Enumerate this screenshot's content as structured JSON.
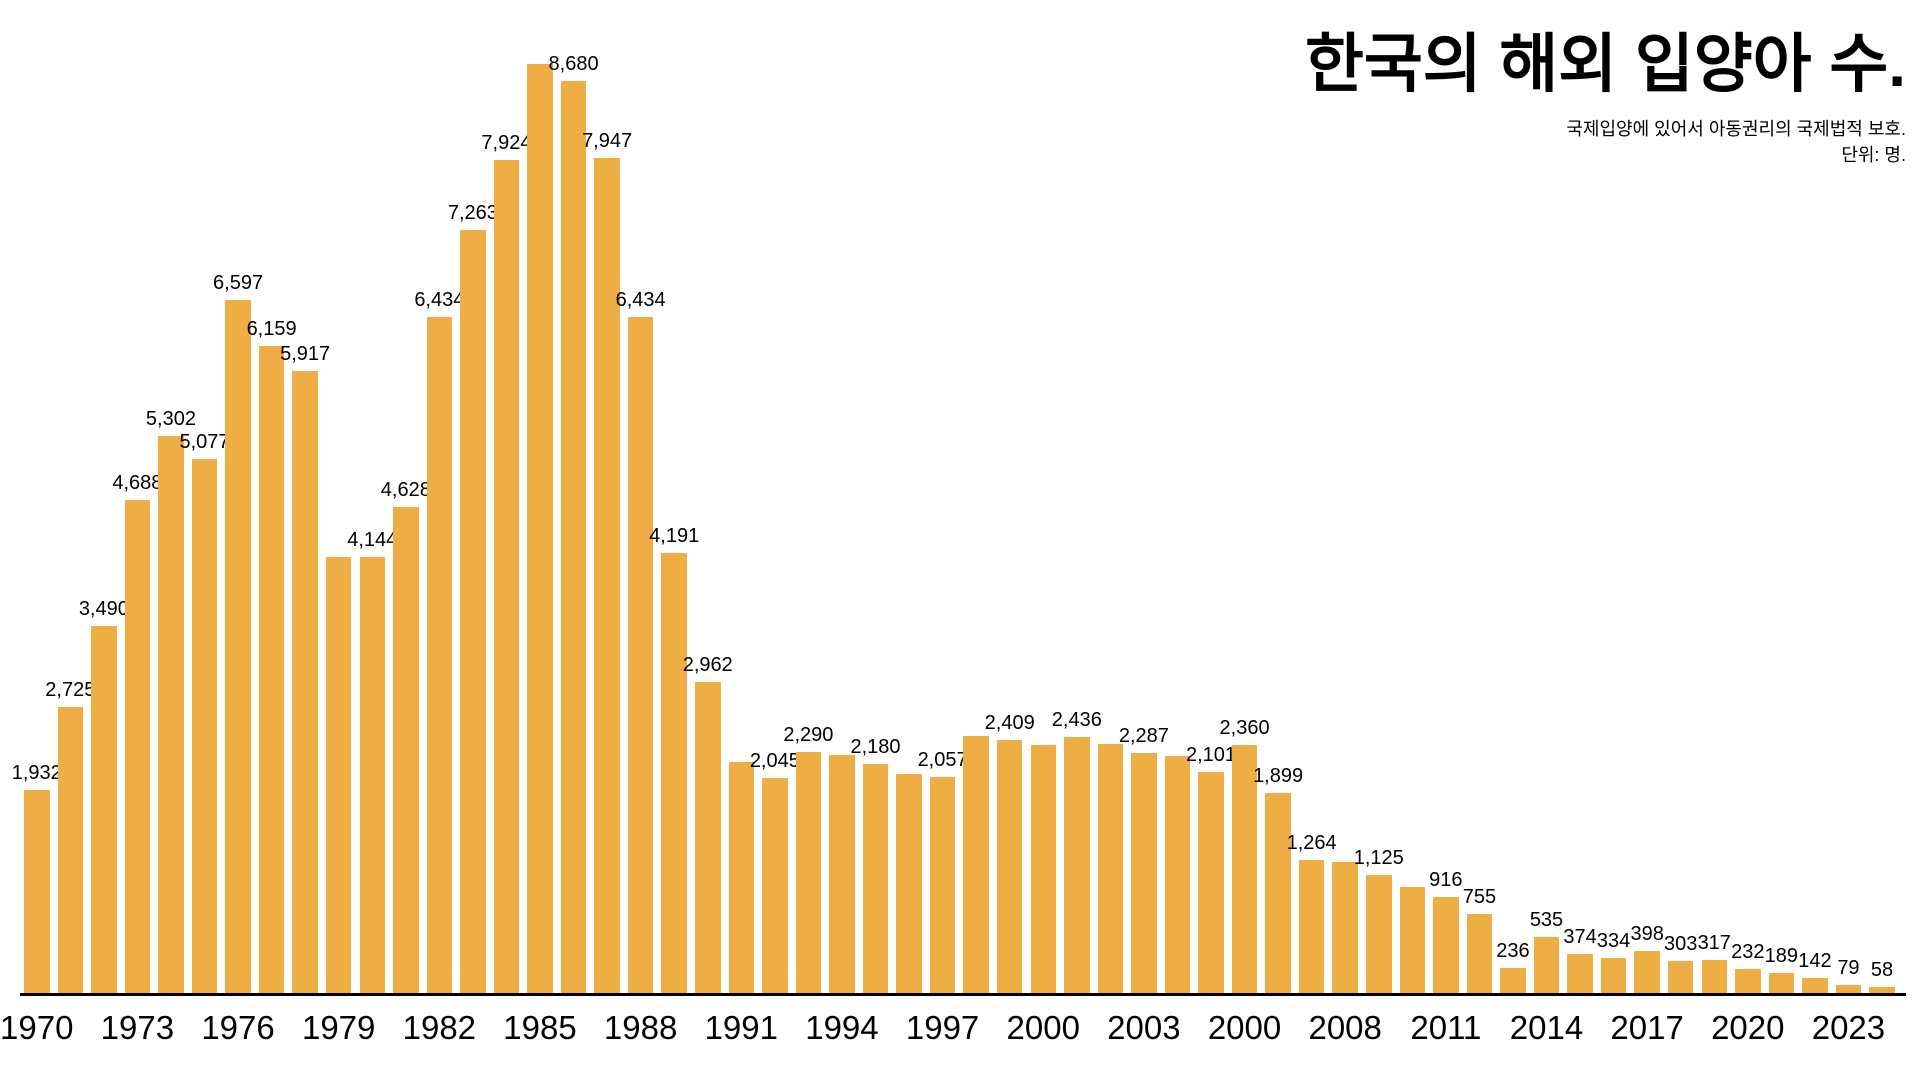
{
  "title": "한국의 해외 입양아 수.",
  "subtitle_line1": "국제입양에 있어서 아동권리의 국제법적 보호.",
  "subtitle_line2": "단위: 명.",
  "chart_data": {
    "type": "bar",
    "title": "한국의 해외 입양아 수.",
    "subtitle": "국제입양에 있어서 아동권리의 국제법적 보호. 단위: 명.",
    "xlabel": "",
    "ylabel": "명",
    "ylim": [
      0,
      8837
    ],
    "grid": false,
    "legend": "none",
    "bar_color": "#EFAD45",
    "axis_line_color": "#000000",
    "text_color": "#000000",
    "background_color": "#ffffff",
    "x_tick_labels": [
      "1970",
      "1973",
      "1976",
      "1979",
      "1982",
      "1985",
      "1988",
      "1991",
      "1994",
      "1997",
      "2000",
      "2003",
      "2000",
      "2008",
      "2011",
      "2014",
      "2017",
      "2020",
      "2023"
    ],
    "bars": [
      {
        "tick": "1970",
        "value": 1932,
        "label": "1,932"
      },
      {
        "tick": "",
        "value": 2725,
        "label": "2,725"
      },
      {
        "tick": "",
        "value": 3490,
        "label": "3,490"
      },
      {
        "tick": "1973",
        "value": 4688,
        "label": "4,688"
      },
      {
        "tick": "",
        "value": 5302,
        "label": "5,302"
      },
      {
        "tick": "",
        "value": 5077,
        "label": "5,077"
      },
      {
        "tick": "1976",
        "value": 6597,
        "label": "6,597"
      },
      {
        "tick": "",
        "value": 6159,
        "label": "6,159"
      },
      {
        "tick": "",
        "value": 5917,
        "label": "5,917"
      },
      {
        "tick": "1979",
        "value": 4148,
        "label": ""
      },
      {
        "tick": "",
        "value": 4144,
        "label": "4,144"
      },
      {
        "tick": "",
        "value": 4628,
        "label": "4,628"
      },
      {
        "tick": "1982",
        "value": 6434,
        "label": "6,434"
      },
      {
        "tick": "",
        "value": 7263,
        "label": "7,263"
      },
      {
        "tick": "",
        "value": 7924,
        "label": "7,924"
      },
      {
        "tick": "1985",
        "value": 8837,
        "label": ""
      },
      {
        "tick": "",
        "value": 8680,
        "label": "8,680"
      },
      {
        "tick": "",
        "value": 7947,
        "label": "7,947"
      },
      {
        "tick": "1988",
        "value": 6434,
        "label": "6,434"
      },
      {
        "tick": "",
        "value": 4191,
        "label": "4,191"
      },
      {
        "tick": "",
        "value": 2962,
        "label": "2,962"
      },
      {
        "tick": "1991",
        "value": 2197,
        "label": ""
      },
      {
        "tick": "",
        "value": 2045,
        "label": "2,045"
      },
      {
        "tick": "",
        "value": 2290,
        "label": "2,290"
      },
      {
        "tick": "1994",
        "value": 2262,
        "label": ""
      },
      {
        "tick": "",
        "value": 2180,
        "label": "2,180"
      },
      {
        "tick": "",
        "value": 2080,
        "label": ""
      },
      {
        "tick": "1997",
        "value": 2057,
        "label": "2,057"
      },
      {
        "tick": "",
        "value": 2443,
        "label": ""
      },
      {
        "tick": "",
        "value": 2409,
        "label": "2,409"
      },
      {
        "tick": "2000",
        "value": 2360,
        "label": ""
      },
      {
        "tick": "",
        "value": 2436,
        "label": "2,436"
      },
      {
        "tick": "",
        "value": 2365,
        "label": ""
      },
      {
        "tick": "2003",
        "value": 2287,
        "label": "2,287"
      },
      {
        "tick": "",
        "value": 2258,
        "label": ""
      },
      {
        "tick": "",
        "value": 2101,
        "label": "2,101"
      },
      {
        "tick": "2000",
        "value": 2360,
        "label": "2,360"
      },
      {
        "tick": "",
        "value": 1899,
        "label": "1,899"
      },
      {
        "tick": "",
        "value": 1264,
        "label": "1,264"
      },
      {
        "tick": "2008",
        "value": 1250,
        "label": ""
      },
      {
        "tick": "",
        "value": 1125,
        "label": "1,125"
      },
      {
        "tick": "",
        "value": 1013,
        "label": ""
      },
      {
        "tick": "2011",
        "value": 916,
        "label": "916"
      },
      {
        "tick": "",
        "value": 755,
        "label": "755"
      },
      {
        "tick": "",
        "value": 236,
        "label": "236"
      },
      {
        "tick": "2014",
        "value": 535,
        "label": "535"
      },
      {
        "tick": "",
        "value": 374,
        "label": "374"
      },
      {
        "tick": "",
        "value": 334,
        "label": "334"
      },
      {
        "tick": "2017",
        "value": 398,
        "label": "398"
      },
      {
        "tick": "",
        "value": 303,
        "label": "303"
      },
      {
        "tick": "",
        "value": 317,
        "label": "317"
      },
      {
        "tick": "2020",
        "value": 232,
        "label": "232"
      },
      {
        "tick": "",
        "value": 189,
        "label": "189"
      },
      {
        "tick": "",
        "value": 142,
        "label": "142"
      },
      {
        "tick": "2023",
        "value": 79,
        "label": "79"
      },
      {
        "tick": "",
        "value": 58,
        "label": "58"
      }
    ]
  }
}
